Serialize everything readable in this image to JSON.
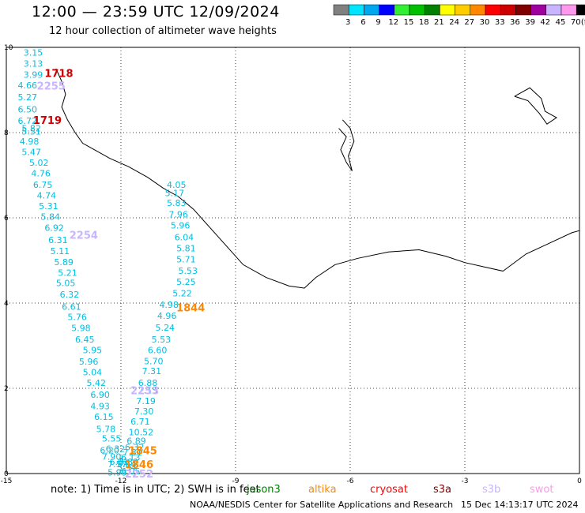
{
  "header": {
    "title": "12:00 — 23:59 UTC 12/09/2024",
    "subtitle": "12 hour collection of altimeter wave heights"
  },
  "legend": {
    "unit": "(ft)",
    "items": [
      {
        "label": "3",
        "color": "#808080"
      },
      {
        "label": "6",
        "color": "#00e5ff"
      },
      {
        "label": "9",
        "color": "#00a8f0"
      },
      {
        "label": "12",
        "color": "#0000ff"
      },
      {
        "label": "15",
        "color": "#33ee33"
      },
      {
        "label": "18",
        "color": "#00c000"
      },
      {
        "label": "21",
        "color": "#008000"
      },
      {
        "label": "24",
        "color": "#ffff00"
      },
      {
        "label": "27",
        "color": "#ffcc00"
      },
      {
        "label": "30",
        "color": "#ff8800"
      },
      {
        "label": "33",
        "color": "#ff0000"
      },
      {
        "label": "36",
        "color": "#cc0000"
      },
      {
        "label": "39",
        "color": "#800000"
      },
      {
        "label": "42",
        "color": "#a000a0"
      },
      {
        "label": "45",
        "color": "#c8b4ff"
      },
      {
        "label": "70",
        "color": "#ff99ee"
      },
      {
        "label": "",
        "color": "#000000"
      }
    ]
  },
  "chart_data": {
    "type": "scatter",
    "title": "12:00 — 23:59 UTC 12/09/2024",
    "subtitle": "12 hour collection of altimeter wave heights",
    "xlim": [
      -15,
      0
    ],
    "ylim": [
      0,
      10
    ],
    "x_ticks": [
      "-15",
      "-12",
      "-9",
      "-6",
      "-3",
      "0"
    ],
    "y_ticks": [
      "0",
      "2",
      "4",
      "6",
      "8",
      "10"
    ],
    "grid": true,
    "track_a": {
      "x": [
        -14.55,
        -14.55,
        -14.55,
        -14.7,
        -14.7,
        -14.7,
        -14.7,
        -14.6,
        -14.6,
        -14.65,
        -14.6,
        -14.4,
        -14.35,
        -14.3,
        -14.2,
        -14.15,
        -14.1,
        -14.0,
        -13.9,
        -13.85,
        -13.75,
        -13.65,
        -13.7,
        -13.6,
        -13.55,
        -13.4,
        -13.3,
        -13.2,
        -13.0,
        -13.1,
        -13.0,
        -12.9,
        -12.8,
        -12.8,
        -12.7,
        -12.65,
        -12.5,
        -12.55,
        -12.4,
        -12.5,
        -12.3,
        -12.35,
        -12.35
      ],
      "y": [
        9.88,
        9.62,
        9.36,
        9.11,
        8.83,
        8.55,
        8.28,
        8.03,
        8.1,
        7.8,
        7.55,
        7.3,
        7.05,
        6.78,
        6.53,
        6.28,
        6.03,
        5.77,
        5.48,
        5.22,
        4.96,
        4.71,
        4.47,
        4.2,
        3.92,
        3.68,
        3.42,
        3.15,
        2.9,
        2.63,
        2.38,
        2.13,
        1.85,
        1.58,
        1.33,
        1.05,
        0.82,
        0.55,
        0.58,
        0.4,
        0.28,
        0.22,
        0.03
      ],
      "values": [
        "3.15",
        "3.13",
        "3.99",
        "4.66",
        "5.27",
        "6.50",
        "6.72",
        "5.51",
        "5.82",
        "4.98",
        "5.47",
        "5.02",
        "4.76",
        "6.75",
        "4.74",
        "5.31",
        "5.84",
        "6.92",
        "6.31",
        "5.11",
        "5.89",
        "5.21",
        "5.05",
        "6.32",
        "6.61",
        "5.76",
        "5.98",
        "6.45",
        "5.95",
        "5.96",
        "5.04",
        "5.42",
        "6.90",
        "4.93",
        "6.15",
        "5.78",
        "5.55",
        "6.20",
        "6.32",
        "7.90",
        "6.91",
        "7.57",
        "5.93"
      ]
    },
    "track_b": {
      "x": [
        -10.8,
        -10.85,
        -10.8,
        -10.75,
        -10.7,
        -10.6,
        -10.55,
        -10.55,
        -10.5,
        -10.55,
        -10.65,
        -11.0,
        -11.05,
        -11.1,
        -11.2,
        -11.3,
        -11.4,
        -11.45,
        -11.55,
        -11.55,
        -11.6,
        -11.65,
        -11.75,
        -11.8,
        -11.85,
        -11.9,
        -11.95,
        -12.0,
        -12.05,
        -12.1,
        -12.1,
        -12.0
      ],
      "y": [
        6.78,
        6.58,
        6.35,
        6.08,
        5.82,
        5.55,
        5.29,
        5.03,
        4.76,
        4.5,
        4.23,
        3.96,
        3.7,
        3.43,
        3.15,
        2.9,
        2.64,
        2.41,
        2.13,
        1.95,
        1.7,
        1.46,
        1.22,
        0.97,
        0.77,
        0.62,
        0.5,
        0.38,
        0.28,
        0.22,
        0.15,
        0.06
      ],
      "values": [
        "4.05",
        "5.17",
        "5.83",
        "7.96",
        "5.96",
        "6.04",
        "5.81",
        "5.71",
        "5.53",
        "5.25",
        "5.22",
        "4.98",
        "4.96",
        "5.24",
        "5.53",
        "6.60",
        "5.70",
        "7.31",
        "6.88",
        "7.15",
        "7.19",
        "7.30",
        "6.71",
        "10.52",
        "6.89",
        "6.32",
        "7.31",
        "6.13",
        "5.89",
        "5.64",
        "5.94",
        "6.05"
      ]
    },
    "labels": [
      {
        "text": "1718",
        "x": -14.0,
        "y": 9.4,
        "color": "#cc0000",
        "bold": true
      },
      {
        "text": "2255",
        "x": -14.2,
        "y": 9.1,
        "color": "#c8b4ff",
        "bold": true
      },
      {
        "text": "1719",
        "x": -14.3,
        "y": 8.3,
        "color": "#cc0000",
        "bold": true
      },
      {
        "text": "2254",
        "x": -13.35,
        "y": 5.6,
        "color": "#c8b4ff",
        "bold": true
      },
      {
        "text": "1844",
        "x": -10.55,
        "y": 3.9,
        "color": "#ff8800",
        "bold": true
      },
      {
        "text": "1845",
        "x": -11.8,
        "y": 0.55,
        "color": "#ff8800",
        "bold": true
      },
      {
        "text": "1846",
        "x": -11.9,
        "y": 0.22,
        "color": "#ff8800",
        "bold": true
      },
      {
        "text": "2252",
        "x": -11.9,
        "y": 0.0,
        "color": "#c8b4ff",
        "bold": true
      },
      {
        "text": "2253",
        "x": -11.75,
        "y": 1.95,
        "color": "#c8b4ff",
        "bold": true
      }
    ]
  },
  "note": {
    "prefix": "note:  1) Time is in UTC; 2) SWH is in feet",
    "satellites": [
      {
        "name": "jason3",
        "color": "#008000"
      },
      {
        "name": "altika",
        "color": "#ff8800"
      },
      {
        "name": "cryosat",
        "color": "#ff0000"
      },
      {
        "name": "s3a",
        "color": "#800000"
      },
      {
        "name": "s3b",
        "color": "#c8b4ff"
      },
      {
        "name": "swot",
        "color": "#ff99ee"
      }
    ]
  },
  "footer": {
    "credit": "NOAA/NESDIS Center for Satellite Applications and Research",
    "timestamp": "15 Dec 14:13:17 UTC 2024"
  }
}
